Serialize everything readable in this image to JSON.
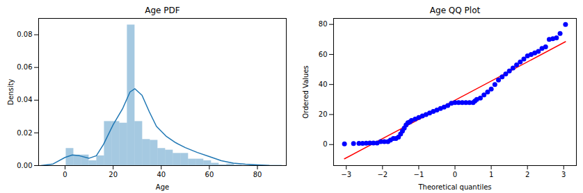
{
  "chart_data": [
    {
      "type": "histogram",
      "title": "Age PDF",
      "x_label": "Age",
      "y_label": "Density",
      "bins": [
        0.42,
        3.6,
        6.78,
        9.96,
        13.14,
        16.32,
        19.5,
        22.68,
        25.86,
        29.04,
        32.22,
        35.4,
        38.58,
        41.76,
        44.94,
        48.12,
        51.3,
        54.48,
        57.66,
        60.84,
        64.02,
        67.2,
        70.38,
        73.56,
        76.74,
        79.92
      ],
      "values": [
        0.0105,
        0.0065,
        0.0065,
        0.003,
        0.006,
        0.027,
        0.027,
        0.026,
        0.086,
        0.027,
        0.016,
        0.0155,
        0.0105,
        0.0095,
        0.0075,
        0.0075,
        0.004,
        0.004,
        0.003,
        0.0015,
        0.0005,
        0.001,
        0.0003,
        0.0,
        0.0003
      ],
      "color": "#1f77b4",
      "kde": {
        "x": [
          -10,
          -5,
          0,
          3,
          6,
          10,
          13,
          16,
          20,
          24,
          27,
          29,
          32,
          35,
          38,
          42,
          46,
          50,
          55,
          60,
          65,
          70,
          75,
          80,
          85,
          90
        ],
        "y": [
          0,
          0.001,
          0.005,
          0.0065,
          0.006,
          0.0045,
          0.006,
          0.013,
          0.025,
          0.035,
          0.045,
          0.047,
          0.043,
          0.033,
          0.024,
          0.018,
          0.014,
          0.011,
          0.008,
          0.0055,
          0.003,
          0.0015,
          0.0008,
          0.0004,
          0.0001,
          0
        ],
        "color": "#1f77b4"
      },
      "xlim": [
        -11,
        92
      ],
      "xticks": [
        0,
        20,
        40,
        60,
        80
      ],
      "ylim": [
        0,
        0.09
      ],
      "yticks": [
        {
          "value": 0,
          "label": "0.00"
        },
        {
          "value": 0.02,
          "label": "0.02"
        },
        {
          "value": 0.04,
          "label": "0.04"
        },
        {
          "value": 0.06,
          "label": "0.06"
        },
        {
          "value": 0.08,
          "label": "0.08"
        }
      ]
    },
    {
      "type": "scatter",
      "title": "Age QQ Plot",
      "x_label": "Theoretical quantiles",
      "y_label": "Ordered Values",
      "points": {
        "marker": "o",
        "color": "#0000ff",
        "x": [
          -3.05,
          -2.8,
          -2.65,
          -2.55,
          -2.45,
          -2.35,
          -2.25,
          -2.15,
          -2.05,
          -1.95,
          -1.85,
          -1.78,
          -1.7,
          -1.63,
          -1.56,
          -1.5,
          -1.45,
          -1.4,
          -1.35,
          -1.3,
          -1.25,
          -1.2,
          -1.1,
          -1.0,
          -0.9,
          -0.8,
          -0.7,
          -0.6,
          -0.5,
          -0.4,
          -0.3,
          -0.2,
          -0.1,
          0,
          0.1,
          0.2,
          0.3,
          0.4,
          0.5,
          0.55,
          0.6,
          0.7,
          0.8,
          0.9,
          1.0,
          1.1,
          1.2,
          1.3,
          1.4,
          1.5,
          1.6,
          1.7,
          1.8,
          1.9,
          2.0,
          2.1,
          2.2,
          2.3,
          2.4,
          2.5,
          2.6,
          2.7,
          2.8,
          2.9,
          3.05
        ],
        "y": [
          0.42,
          0.67,
          0.75,
          0.83,
          0.92,
          1,
          1,
          1,
          2,
          2,
          2,
          3,
          4,
          4,
          5,
          7,
          9,
          11,
          13,
          14.5,
          15,
          16,
          17,
          18,
          19,
          20,
          21,
          22,
          23,
          24,
          25,
          26,
          27.5,
          28,
          28,
          28,
          28,
          28,
          28,
          29,
          30,
          31,
          33,
          35,
          37,
          40,
          43,
          45,
          47,
          49,
          51,
          53,
          55,
          57,
          59,
          60,
          61,
          62,
          64,
          65,
          70,
          70.5,
          71,
          74,
          80
        ]
      },
      "fit_line": {
        "x": [
          -3.05,
          3.05
        ],
        "y": [
          -9.5,
          68.5
        ],
        "color": "#ff0000",
        "line_style": "solid"
      },
      "xlim": [
        -3.35,
        3.35
      ],
      "xticks": [
        -3,
        -2,
        -1,
        0,
        1,
        2,
        3
      ],
      "ylim": [
        -14,
        84
      ],
      "yticks": [
        0,
        20,
        40,
        60,
        80
      ]
    }
  ]
}
